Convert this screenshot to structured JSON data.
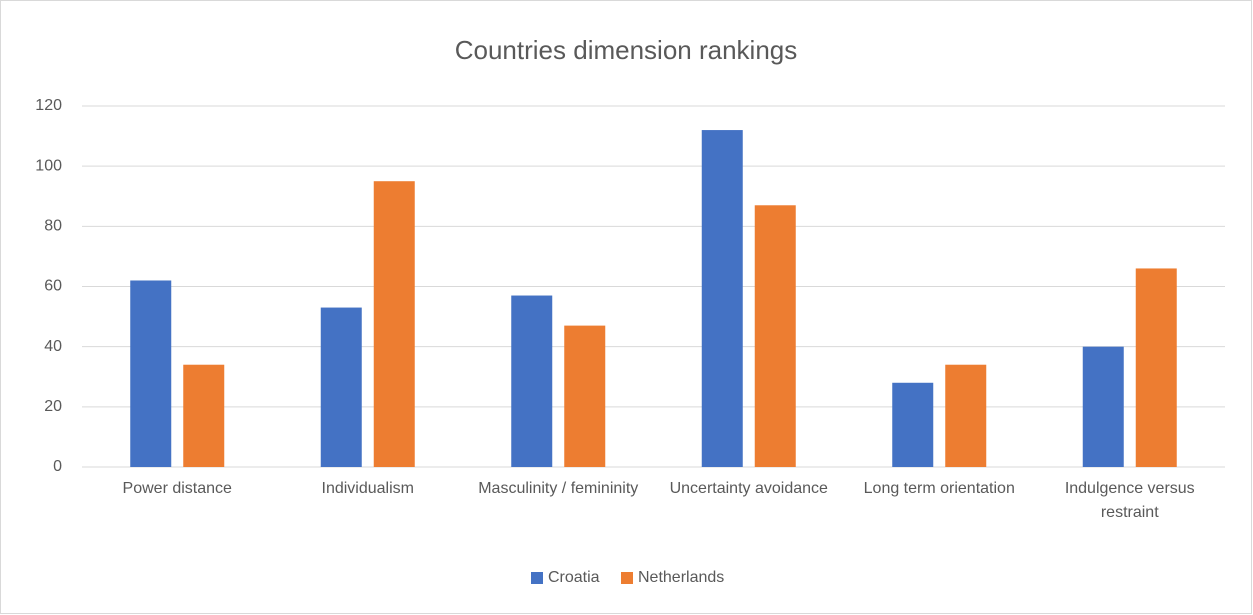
{
  "chart_data": {
    "type": "bar",
    "title": "Countries dimension rankings",
    "categories": [
      "Power distance",
      "Individualism",
      "Masculinity / femininity",
      "Uncertainty avoidance",
      "Long term orientation",
      "Indulgence versus restraint"
    ],
    "series": [
      {
        "name": "Croatia",
        "color": "#4472c4",
        "values": [
          62,
          53,
          57,
          112,
          28,
          40
        ]
      },
      {
        "name": "Netherlands",
        "color": "#ed7d31",
        "values": [
          34,
          95,
          47,
          87,
          34,
          66
        ]
      }
    ],
    "ylim": [
      0,
      120
    ],
    "yticks": [
      0,
      20,
      40,
      60,
      80,
      100,
      120
    ],
    "grid": true,
    "legend": "bottom"
  }
}
